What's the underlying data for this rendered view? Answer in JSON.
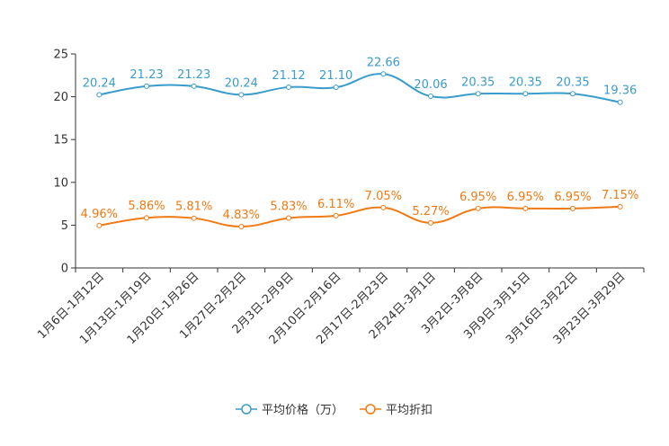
{
  "chart_data": {
    "type": "line",
    "title": "",
    "xlabel": "",
    "ylabel": "",
    "ylim": [
      0,
      25
    ],
    "yticks": [
      0,
      5,
      10,
      15,
      20,
      25
    ],
    "grid": false,
    "legend_position": "bottom-center",
    "categories": [
      "1月6日-1月12日",
      "1月13日-1月19日",
      "1月20日-1月26日",
      "1月27日-2月2日",
      "2月3日-2月9日",
      "2月10日-2月16日",
      "2月17日-2月23日",
      "2月24日-3月1日",
      "3月2日-3月8日",
      "3月9日-3月15日",
      "3月16日-3月22日",
      "3月23日-3月29日"
    ],
    "series": [
      {
        "name": "平均价格（万）",
        "color": "#3a9ccb",
        "values": [
          20.24,
          21.23,
          21.23,
          20.24,
          21.12,
          21.1,
          22.66,
          20.06,
          20.35,
          20.35,
          20.35,
          19.36
        ],
        "labels": [
          "20.24",
          "21.23",
          "21.23",
          "20.24",
          "21.12",
          "21.10",
          "22.66",
          "20.06",
          "20.35",
          "20.35",
          "20.35",
          "19.36"
        ]
      },
      {
        "name": "平均折扣",
        "color": "#f07a14",
        "values": [
          4.96,
          5.86,
          5.81,
          4.83,
          5.83,
          6.11,
          7.05,
          5.27,
          6.95,
          6.95,
          6.95,
          7.15
        ],
        "labels": [
          "4.96%",
          "5.86%",
          "5.81%",
          "4.83%",
          "5.83%",
          "6.11%",
          "7.05%",
          "5.27%",
          "6.95%",
          "6.95%",
          "6.95%",
          "7.15%"
        ]
      }
    ]
  }
}
